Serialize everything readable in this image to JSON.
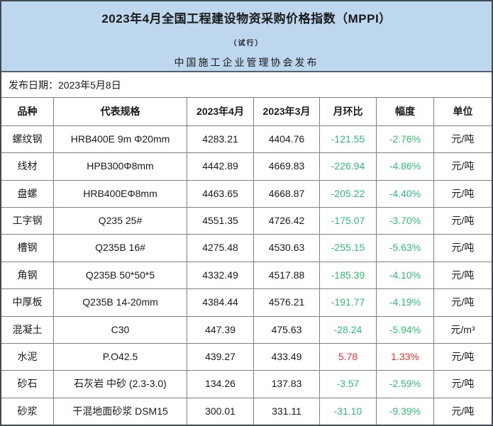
{
  "header": {
    "title": "2023年4月全国工程建设物资采购价格指数（MPPI）",
    "subtitle": "（试行）",
    "publisher": "中国施工企业管理协会发布",
    "release_date_label": "发布日期：",
    "release_date": "2023年5月8日"
  },
  "colors": {
    "banner_background": "#bdd7ee",
    "decrease_text": "#2fbf71",
    "increase_text": "#ff2e2e"
  },
  "table": {
    "columns": [
      "品种",
      "代表规格",
      "2023年4月",
      "2023年3月",
      "月环比",
      "幅度",
      "单位"
    ],
    "rows": [
      {
        "name": "螺纹钢",
        "spec": "HRB400E 9m Φ20mm",
        "apr": "4283.21",
        "mar": "4404.76",
        "mom": "-121.55",
        "rate": "-2.76%",
        "unit": "元/吨",
        "trend": "down"
      },
      {
        "name": "线材",
        "spec": "HPB300Φ8mm",
        "apr": "4442.89",
        "mar": "4669.83",
        "mom": "-226.94",
        "rate": "-4.86%",
        "unit": "元/吨",
        "trend": "down"
      },
      {
        "name": "盘螺",
        "spec": "HRB400EΦ8mm",
        "apr": "4463.65",
        "mar": "4668.87",
        "mom": "-205.22",
        "rate": "-4.40%",
        "unit": "元/吨",
        "trend": "down"
      },
      {
        "name": "工字钢",
        "spec": "Q235 25#",
        "apr": "4551.35",
        "mar": "4726.42",
        "mom": "-175.07",
        "rate": "-3.70%",
        "unit": "元/吨",
        "trend": "down"
      },
      {
        "name": "槽钢",
        "spec": "Q235B 16#",
        "apr": "4275.48",
        "mar": "4530.63",
        "mom": "-255.15",
        "rate": "-5.63%",
        "unit": "元/吨",
        "trend": "down"
      },
      {
        "name": "角钢",
        "spec": "Q235B 50*50*5",
        "apr": "4332.49",
        "mar": "4517.88",
        "mom": "-185.39",
        "rate": "-4.10%",
        "unit": "元/吨",
        "trend": "down"
      },
      {
        "name": "中厚板",
        "spec": "Q235B 14-20mm",
        "apr": "4384.44",
        "mar": "4576.21",
        "mom": "-191.77",
        "rate": "-4.19%",
        "unit": "元/吨",
        "trend": "down"
      },
      {
        "name": "混凝土",
        "spec": "C30",
        "apr": "447.39",
        "mar": "475.63",
        "mom": "-28.24",
        "rate": "-5.94%",
        "unit": "元/m³",
        "trend": "down"
      },
      {
        "name": "水泥",
        "spec": "P.O42.5",
        "apr": "439.27",
        "mar": "433.49",
        "mom": "5.78",
        "rate": "1.33%",
        "unit": "元/吨",
        "trend": "up"
      },
      {
        "name": "砂石",
        "spec": "石灰岩 中砂 (2.3-3.0)",
        "apr": "134.26",
        "mar": "137.83",
        "mom": "-3.57",
        "rate": "-2.59%",
        "unit": "元/吨",
        "trend": "down"
      },
      {
        "name": "砂浆",
        "spec": "干混地面砂浆 DSM15",
        "apr": "300.01",
        "mar": "331.11",
        "mom": "-31.10",
        "rate": "-9.39%",
        "unit": "元/吨",
        "trend": "down"
      }
    ]
  }
}
